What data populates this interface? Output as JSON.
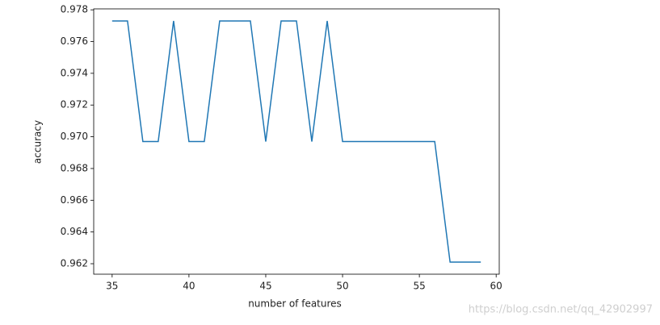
{
  "chart_data": {
    "type": "line",
    "x_label": "number of features",
    "y_label": "accuracy",
    "x": [
      35,
      36,
      37,
      38,
      39,
      40,
      41,
      42,
      43,
      44,
      45,
      46,
      47,
      48,
      49,
      50,
      51,
      52,
      53,
      54,
      55,
      56,
      57,
      58,
      59
    ],
    "series": [
      {
        "color": "#1f77b4",
        "values": [
          0.9773,
          0.9773,
          0.9697,
          0.9697,
          0.9773,
          0.9697,
          0.9697,
          0.9773,
          0.9773,
          0.9773,
          0.9697,
          0.9773,
          0.9773,
          0.9697,
          0.9773,
          0.9697,
          0.9697,
          0.9697,
          0.9697,
          0.9697,
          0.9697,
          0.9697,
          0.9621,
          0.9621,
          0.9621
        ]
      }
    ],
    "xlim": [
      33.8,
      60.2
    ],
    "xticks": [
      35,
      40,
      45,
      50,
      55,
      60
    ],
    "ylim": [
      0.96134,
      0.97806
    ],
    "yticks": [
      0.962,
      0.964,
      0.966,
      0.968,
      {
        "value": 0.97,
        "label": "0.970"
      },
      0.972,
      0.974,
      0.976,
      0.978
    ],
    "grid": false,
    "watermark": "https://blog.csdn.net/qq_42902997"
  }
}
